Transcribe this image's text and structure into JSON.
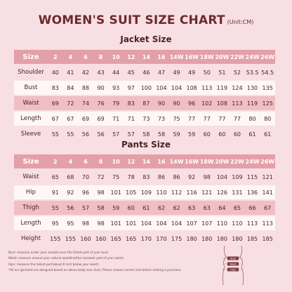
{
  "title": "WOMEN'S SUIT SIZE CHART",
  "unit": "(Unit:CM)",
  "jacket": {
    "title": "Jacket Size",
    "header": [
      "Size",
      "2",
      "4",
      "6",
      "8",
      "10",
      "12",
      "14",
      "16",
      "14W",
      "16W",
      "18W",
      "20W",
      "22W",
      "24W",
      "26W"
    ],
    "rows": [
      {
        "label": "Shoulder",
        "style": "plain",
        "values": [
          "40",
          "41",
          "42",
          "43",
          "44",
          "45",
          "46",
          "47",
          "49",
          "49",
          "50",
          "51",
          "52",
          "53.5",
          "54.5"
        ]
      },
      {
        "label": "Bust",
        "style": "white",
        "values": [
          "83",
          "84",
          "88",
          "90",
          "93",
          "97",
          "100",
          "104",
          "104",
          "108",
          "113",
          "119",
          "124",
          "130",
          "135"
        ]
      },
      {
        "label": "Waist",
        "style": "pink",
        "values": [
          "69",
          "72",
          "74",
          "76",
          "79",
          "83",
          "87",
          "90",
          "90",
          "96",
          "102",
          "108",
          "113",
          "119",
          "125"
        ]
      },
      {
        "label": "Length",
        "style": "white",
        "values": [
          "67",
          "67",
          "69",
          "69",
          "71",
          "71",
          "73",
          "73",
          "75",
          "77",
          "77",
          "77",
          "77",
          "80",
          "80"
        ]
      },
      {
        "label": "Sleeve",
        "style": "plain",
        "values": [
          "55",
          "55",
          "56",
          "56",
          "57",
          "57",
          "58",
          "58",
          "59",
          "59",
          "60",
          "60",
          "60",
          "61",
          "61"
        ]
      }
    ]
  },
  "pants": {
    "title": "Pants Size",
    "header": [
      "Size",
      "2",
      "4",
      "6",
      "8",
      "10",
      "12",
      "14",
      "16",
      "14W",
      "16W",
      "18W",
      "20W",
      "22W",
      "24W",
      "26W"
    ],
    "rows": [
      {
        "label": "Waist",
        "style": "plain",
        "values": [
          "65",
          "68",
          "70",
          "72",
          "75",
          "78",
          "83",
          "86",
          "86",
          "92",
          "98",
          "104",
          "109",
          "115",
          "121"
        ]
      },
      {
        "label": "Hip",
        "style": "white",
        "values": [
          "91",
          "92",
          "96",
          "98",
          "101",
          "105",
          "109",
          "110",
          "112",
          "116",
          "121",
          "126",
          "131",
          "136",
          "141"
        ]
      },
      {
        "label": "Thigh",
        "style": "pink",
        "values": [
          "55",
          "56",
          "57",
          "58",
          "59",
          "60",
          "61",
          "62",
          "62",
          "63",
          "63",
          "64",
          "65",
          "66",
          "67"
        ]
      },
      {
        "label": "Length",
        "style": "white",
        "values": [
          "95",
          "95",
          "98",
          "98",
          "101",
          "101",
          "104",
          "104",
          "104",
          "107",
          "107",
          "110",
          "110",
          "113",
          "113"
        ]
      },
      {
        "label": "Height",
        "style": "plain",
        "values": [
          "155",
          "155",
          "160",
          "160",
          "165",
          "165",
          "170",
          "170",
          "175",
          "180",
          "180",
          "180",
          "180",
          "185",
          "185"
        ]
      }
    ]
  },
  "notes": [
    "Bust: measure under your armpits,over the fullest part of your bust.",
    "Waist: measure around your natural waistline(the narrower part of your waist)",
    "Hips: measure the fullest part(about 8 inch below your waist)",
    "*All our garment are designed based on above body size chart, Please choose correct size before making a purchase."
  ],
  "figure_labels": [
    "Bust",
    "Waist",
    "Hips"
  ]
}
